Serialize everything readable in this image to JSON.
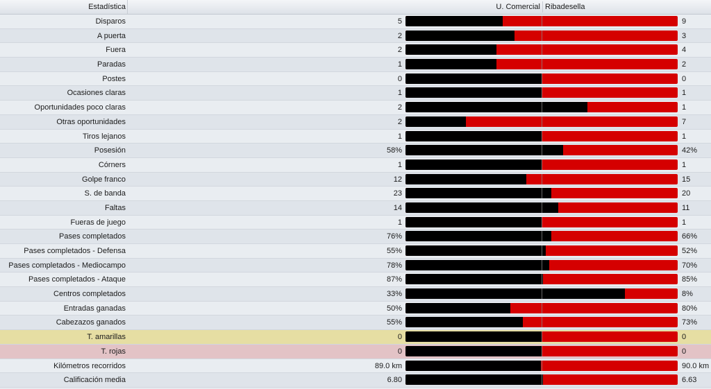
{
  "header": {
    "stat_label": "Estadística",
    "home_team": "U. Comercial",
    "away_team": "Ribadesella"
  },
  "colors": {
    "home_bar": "#000000",
    "away_bar": "#d50000",
    "yellow_row": "#e6dea3",
    "red_row": "#e3c3c6"
  },
  "stats": [
    {
      "label": "Disparos",
      "home": "5",
      "away": "9",
      "home_share": 0.357
    },
    {
      "label": "A puerta",
      "home": "2",
      "away": "3",
      "home_share": 0.4
    },
    {
      "label": "Fuera",
      "home": "2",
      "away": "4",
      "home_share": 0.333
    },
    {
      "label": "Paradas",
      "home": "1",
      "away": "2",
      "home_share": 0.333
    },
    {
      "label": "Postes",
      "home": "0",
      "away": "0",
      "home_share": 0.5
    },
    {
      "label": "Ocasiones claras",
      "home": "1",
      "away": "1",
      "home_share": 0.5
    },
    {
      "label": "Oportunidades poco claras",
      "home": "2",
      "away": "1",
      "home_share": 0.667
    },
    {
      "label": "Otras oportunidades",
      "home": "2",
      "away": "7",
      "home_share": 0.222
    },
    {
      "label": "Tiros lejanos",
      "home": "1",
      "away": "1",
      "home_share": 0.5
    },
    {
      "label": "Posesión",
      "home": "58%",
      "away": "42%",
      "home_share": 0.58
    },
    {
      "label": "Córners",
      "home": "1",
      "away": "1",
      "home_share": 0.5
    },
    {
      "label": "Golpe franco",
      "home": "12",
      "away": "15",
      "home_share": 0.444
    },
    {
      "label": "S. de banda",
      "home": "23",
      "away": "20",
      "home_share": 0.535
    },
    {
      "label": "Faltas",
      "home": "14",
      "away": "11",
      "home_share": 0.56
    },
    {
      "label": "Fueras de juego",
      "home": "1",
      "away": "1",
      "home_share": 0.5
    },
    {
      "label": "Pases completados",
      "home": "76%",
      "away": "66%",
      "home_share": 0.535
    },
    {
      "label": "Pases completados - Defensa",
      "home": "55%",
      "away": "52%",
      "home_share": 0.514
    },
    {
      "label": "Pases completados - Mediocampo",
      "home": "78%",
      "away": "70%",
      "home_share": 0.527
    },
    {
      "label": "Pases completados - Ataque",
      "home": "87%",
      "away": "85%",
      "home_share": 0.506
    },
    {
      "label": "Centros completados",
      "home": "33%",
      "away": "8%",
      "home_share": 0.805
    },
    {
      "label": "Entradas ganadas",
      "home": "50%",
      "away": "80%",
      "home_share": 0.385
    },
    {
      "label": "Cabezazos ganados",
      "home": "55%",
      "away": "73%",
      "home_share": 0.43
    },
    {
      "label": "T. amarillas",
      "home": "0",
      "away": "0",
      "home_share": 0.5,
      "highlight": "yellow"
    },
    {
      "label": "T. rojas",
      "home": "0",
      "away": "0",
      "home_share": 0.5,
      "highlight": "red"
    },
    {
      "label": "Kilómetros recorridos",
      "home": "89.0 km",
      "away": "90.0 km",
      "home_share": 0.497
    },
    {
      "label": "Calificación media",
      "home": "6.80",
      "away": "6.63",
      "home_share": 0.506
    }
  ]
}
